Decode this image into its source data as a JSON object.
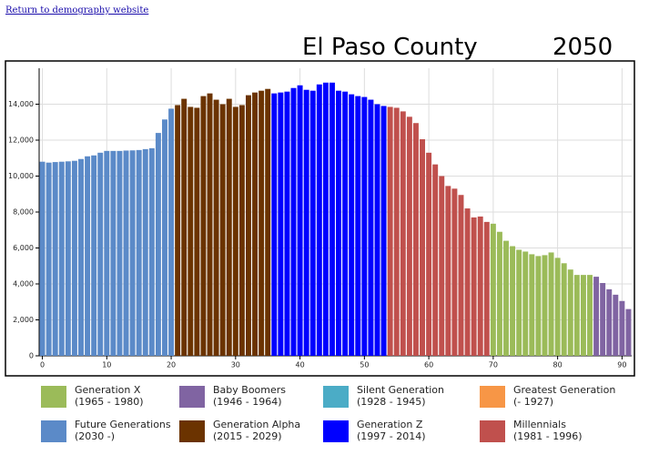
{
  "link": "Return to demography website",
  "chart_data": {
    "type": "bar",
    "title": "El Paso County",
    "subtitle": "2050",
    "xlim": [
      -0.5,
      91.5
    ],
    "xticks": [
      0,
      10,
      20,
      30,
      40,
      50,
      60,
      70,
      80,
      90
    ],
    "ylim": [
      0,
      16000
    ],
    "yticks": [
      0,
      {
        "value": 2000,
        "label": "2,000"
      },
      {
        "value": 4000,
        "label": "4,000"
      },
      {
        "value": 6000,
        "label": "6,000"
      },
      {
        "value": 8000,
        "label": "8,000"
      },
      {
        "value": 10000,
        "label": "10,000"
      },
      {
        "value": 12000,
        "label": "12,000"
      },
      {
        "value": 14000,
        "label": "14,000"
      }
    ],
    "grid": true,
    "series": [
      {
        "name": "Generation X",
        "range": "(1965 - 1980)",
        "color": "#9bbb59",
        "x": [
          70,
          71,
          72,
          73,
          74,
          75,
          76,
          77,
          78,
          79,
          80,
          81,
          82,
          83,
          84,
          85
        ],
        "values": [
          7350,
          6900,
          6400,
          6100,
          5900,
          5800,
          5650,
          5550,
          5600,
          5750,
          5450,
          5150,
          4800,
          4500,
          4500,
          4500
        ]
      },
      {
        "name": "Baby Boomers",
        "range": "(1946 - 1964)",
        "color": "#8064a2",
        "x": [
          86,
          87,
          88,
          89,
          90,
          91
        ],
        "values": [
          4400,
          4050,
          3700,
          3400,
          3050,
          2600
        ]
      },
      {
        "name": "Silent Generation",
        "range": "(1928 - 1945)",
        "color": "#4bacc6",
        "x": [],
        "values": []
      },
      {
        "name": "Greatest Generation",
        "range": "(- 1927)",
        "color": "#f79646",
        "x": [],
        "values": []
      },
      {
        "name": "Future Generations",
        "range": "(2030 -)",
        "color": "#5b8ac8",
        "x": [
          0,
          1,
          2,
          3,
          4,
          5,
          6,
          7,
          8,
          9,
          10,
          11,
          12,
          13,
          14,
          15,
          16,
          17,
          18,
          19,
          20
        ],
        "values": [
          10800,
          10750,
          10780,
          10800,
          10820,
          10850,
          10950,
          11100,
          11150,
          11300,
          11400,
          11400,
          11400,
          11420,
          11430,
          11450,
          11500,
          11550,
          12400,
          13150,
          13750
        ]
      },
      {
        "name": "Generation Alpha",
        "range": "(2015 - 2029)",
        "color": "#6b3300",
        "x": [
          21,
          22,
          23,
          24,
          25,
          26,
          27,
          28,
          29,
          30,
          31,
          32,
          33,
          34,
          35
        ],
        "values": [
          13950,
          14300,
          13850,
          13800,
          14450,
          14600,
          14250,
          14000,
          14300,
          13850,
          13950,
          14500,
          14650,
          14750,
          14850
        ]
      },
      {
        "name": "Generation Z",
        "range": "(1997 - 2014)",
        "color": "#0000ff",
        "x": [
          36,
          37,
          38,
          39,
          40,
          41,
          42,
          43,
          44,
          45,
          46,
          47,
          48,
          49,
          50,
          51,
          52,
          53
        ],
        "values": [
          14600,
          14650,
          14700,
          14900,
          15050,
          14800,
          14750,
          15100,
          15200,
          15200,
          14750,
          14700,
          14550,
          14450,
          14400,
          14250,
          14000,
          13900
        ]
      },
      {
        "name": "Millennials",
        "range": "(1981 - 1996)",
        "color": "#c0504d",
        "x": [
          54,
          55,
          56,
          57,
          58,
          59,
          60,
          61,
          62,
          63,
          64,
          65,
          66,
          67,
          68,
          69
        ],
        "values": [
          13850,
          13800,
          13600,
          13300,
          12950,
          12050,
          11300,
          10650,
          10000,
          9450,
          9300,
          8950,
          8200,
          7700,
          7750,
          7450
        ]
      }
    ]
  }
}
